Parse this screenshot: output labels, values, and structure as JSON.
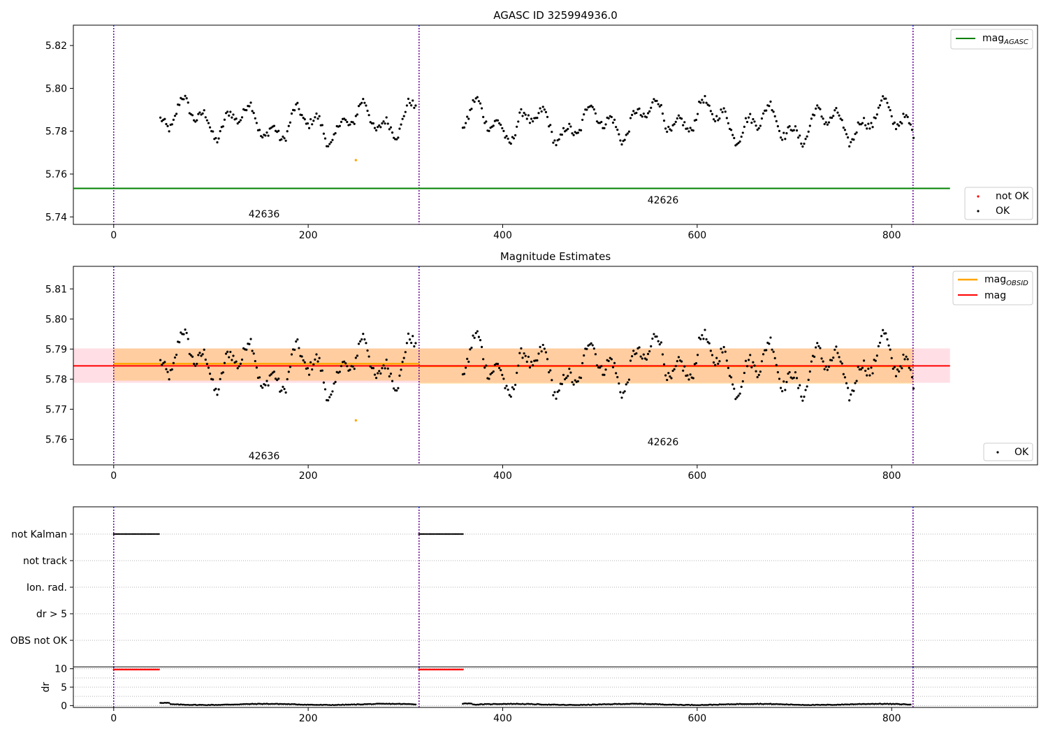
{
  "chart_data": [
    {
      "type": "scatter",
      "title": "AGASC ID 325994936.0",
      "xlabel": "",
      "ylabel": "",
      "xlim": [
        -41.5,
        950
      ],
      "ylim": [
        5.7365,
        5.8295
      ],
      "xticks": [
        0,
        200,
        400,
        600,
        800
      ],
      "xtick_labels": [
        "0",
        "200",
        "400",
        "600",
        "800"
      ],
      "yticks": [
        5.74,
        5.76,
        5.78,
        5.8,
        5.82
      ],
      "ytick_labels": [
        "5.74",
        "5.76",
        "5.78",
        "5.80",
        "5.82"
      ],
      "vlines": [
        0,
        314,
        822
      ],
      "hlines": [
        {
          "name": "mag_AGASC",
          "y": 5.7533,
          "x": [
            -41.5,
            860
          ],
          "color": "#008000"
        }
      ],
      "obsid_labels": [
        {
          "text": "42636",
          "x": 156,
          "y": 5.7405
        },
        {
          "text": "42626",
          "x": 567,
          "y": 5.747
        }
      ],
      "legend_upper": {
        "position": "upper-right",
        "entries": [
          {
            "label": "mag",
            "sub": "AGASC",
            "color": "#008000"
          }
        ]
      },
      "legend_lower": {
        "position": "lower-right",
        "entries": [
          {
            "label": "not OK",
            "color": "#ff0000"
          },
          {
            "label": "OK",
            "color": "#000000"
          }
        ]
      },
      "outliers": [
        {
          "x": 249,
          "y": 5.7665,
          "color": "#ffa500"
        }
      ],
      "grid": false
    },
    {
      "type": "scatter",
      "title": "Magnitude Estimates",
      "xlabel": "",
      "ylabel": "",
      "xlim": [
        -41.5,
        950
      ],
      "ylim": [
        5.7515,
        5.8175
      ],
      "xticks": [
        0,
        200,
        400,
        600,
        800
      ],
      "xtick_labels": [
        "0",
        "200",
        "400",
        "600",
        "800"
      ],
      "yticks": [
        5.76,
        5.77,
        5.78,
        5.79,
        5.8,
        5.81
      ],
      "ytick_labels": [
        "5.76",
        "5.77",
        "5.78",
        "5.79",
        "5.80",
        "5.81"
      ],
      "vlines": [
        0,
        314,
        822
      ],
      "band_mag": {
        "ymin": 5.7788,
        "ymax": 5.7902,
        "x": [
          -41.5,
          860
        ],
        "color": "#ffc0cb"
      },
      "band_obsid": [
        {
          "x": [
            0,
            314
          ],
          "ymin": 5.7795,
          "ymax": 5.7902
        },
        {
          "x": [
            314,
            822
          ],
          "ymin": 5.7785,
          "ymax": 5.7902
        }
      ],
      "mag_obsid": [
        {
          "x": [
            0,
            314
          ],
          "y": 5.7851
        },
        {
          "x": [
            314,
            822
          ],
          "y": 5.7843
        }
      ],
      "mag": {
        "y": 5.7844,
        "x": [
          -41.5,
          860
        ]
      },
      "obsid_labels": [
        {
          "text": "42636",
          "x": 156,
          "y": 5.7535
        },
        {
          "text": "42626",
          "x": 567,
          "y": 5.7585
        }
      ],
      "legend_upper": {
        "position": "upper-right",
        "entries": [
          {
            "label": "mag",
            "sub": "OBSID",
            "color": "#ffa500"
          },
          {
            "label": "mag",
            "sub": "",
            "color": "#ff0000"
          }
        ]
      },
      "legend_lower": {
        "position": "lower-right",
        "entries": [
          {
            "label": "OK",
            "color": "#000000"
          }
        ]
      },
      "outliers": [
        {
          "x": 249,
          "y": 5.7663,
          "color": "#ffa500"
        }
      ],
      "grid": false
    },
    {
      "type": "scatter",
      "title": "",
      "xlabel": "",
      "ylabel": "",
      "xlim": [
        -41.5,
        950
      ],
      "categories": [
        "not Kalman",
        "not track",
        "Ion. rad.",
        "dr > 5",
        "OBS not OK"
      ],
      "vlines": [
        0,
        314,
        822
      ],
      "flag_segments": [
        {
          "category": "not Kalman",
          "x": [
            0,
            47
          ]
        },
        {
          "category": "not Kalman",
          "x": [
            314,
            360
          ]
        }
      ],
      "grid": true
    },
    {
      "type": "scatter",
      "title": "",
      "xlabel": "",
      "ylabel": "dr",
      "xlim": [
        -41.5,
        950
      ],
      "ylim": [
        -0.5,
        10.5
      ],
      "xticks": [
        0,
        200,
        400,
        600,
        800
      ],
      "xtick_labels": [
        "0",
        "200",
        "400",
        "600",
        "800"
      ],
      "yticks": [
        0,
        5,
        10
      ],
      "ytick_labels": [
        "0",
        "5",
        "10"
      ],
      "vlines": [
        0,
        314,
        822
      ],
      "clipped_segments": [
        {
          "x": [
            0,
            47
          ],
          "y": 9.8,
          "color": "#ff0000"
        },
        {
          "x": [
            314,
            360
          ],
          "y": 9.8,
          "color": "#ff0000"
        }
      ],
      "series": [
        {
          "name": "dr",
          "x_range": [
            48,
            820
          ],
          "y_range": [
            0.1,
            0.7
          ]
        }
      ],
      "grid": true
    }
  ]
}
